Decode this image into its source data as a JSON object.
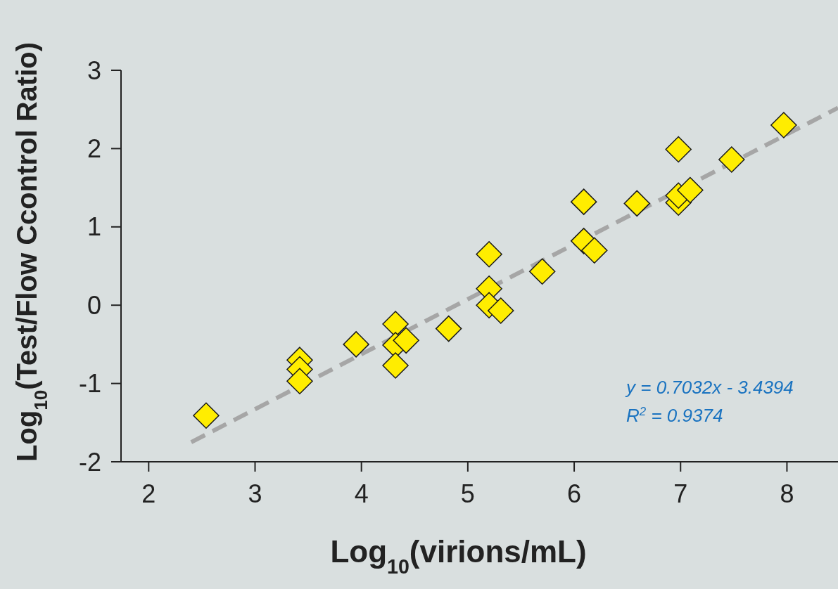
{
  "chart_data": {
    "type": "scatter",
    "xlabel": "Log$_{10}$(virions/mL)",
    "ylabel": "Log$_{10}$(Test/Flow Ccontrol Ratio)",
    "xlim": [
      1.74,
      8.48
    ],
    "ylim": [
      -2,
      3
    ],
    "xticks": [
      2,
      3,
      4,
      5,
      6,
      7,
      8
    ],
    "yticks": [
      -2,
      -1,
      0,
      1,
      2,
      3
    ],
    "grid": false,
    "marker": "diamond",
    "series": [
      {
        "type": "line",
        "color": "#a6a6a6",
        "line_style": "dashed",
        "marker": "none",
        "x": [
          2.4,
          8.48
        ],
        "values": [
          -1.75,
          2.52
        ]
      },
      {
        "color": "#ffed00",
        "x": [
          2.54,
          3.42,
          3.42,
          3.42,
          3.95,
          4.32,
          4.32,
          4.32,
          4.42,
          4.82,
          5.2,
          5.2,
          5.2,
          5.31,
          5.7,
          6.09,
          6.09,
          6.19,
          6.59,
          6.98,
          6.98,
          6.98,
          7.09,
          7.48,
          7.97
        ],
        "values": [
          -1.41,
          -0.7,
          -0.82,
          -0.97,
          -0.5,
          -0.24,
          -0.51,
          -0.77,
          -0.45,
          -0.3,
          0.65,
          0.21,
          0.0,
          -0.07,
          0.43,
          1.32,
          0.82,
          0.7,
          1.3,
          1.99,
          1.31,
          1.4,
          1.47,
          1.86,
          2.3
        ]
      }
    ],
    "annotations": [
      "y = 0.7032x - 3.4394",
      "R$^{2}$ = 0.9374"
    ]
  }
}
